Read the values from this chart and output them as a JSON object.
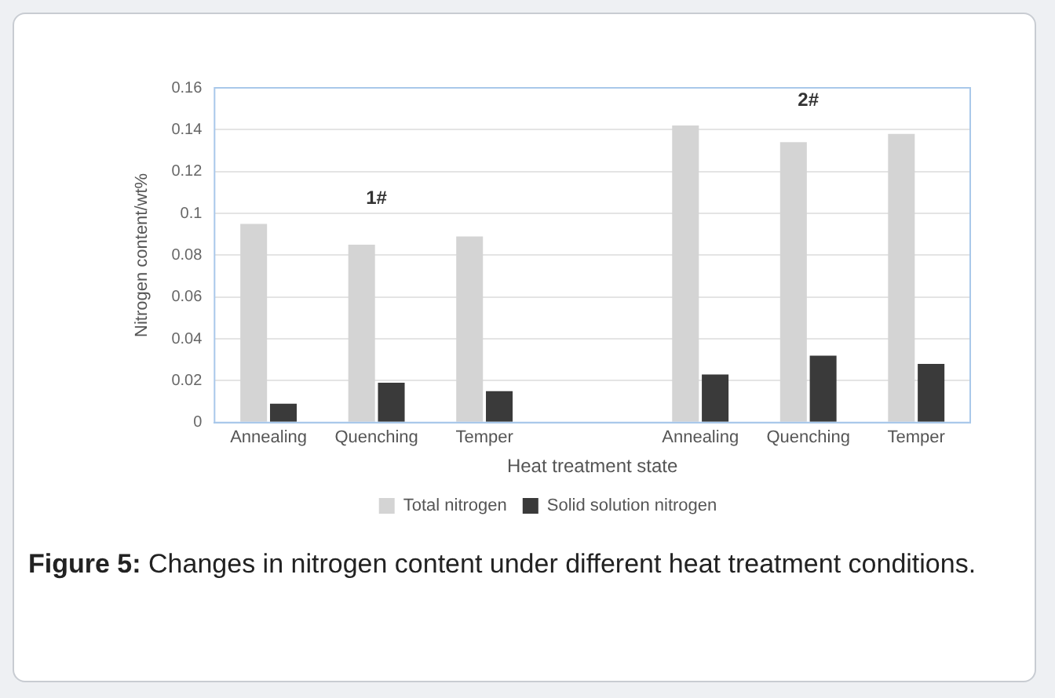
{
  "chart_data": {
    "type": "bar",
    "title": "Figure 5: Changes in nitrogen content under different heat treatment conditions.",
    "xlabel": "Heat treatment state",
    "ylabel": "Nitrogen content/wt%",
    "categories": [
      "Annealing",
      "Quenching",
      "Temper",
      null,
      "Annealing",
      "Quenching",
      "Temper"
    ],
    "series": [
      {
        "name": "Total nitrogen",
        "color": "#d4d4d4",
        "values": [
          0.095,
          0.085,
          0.089,
          null,
          0.142,
          0.134,
          0.138
        ]
      },
      {
        "name": "Solid solution nitrogen",
        "color": "#3a3a3a",
        "values": [
          0.009,
          0.019,
          0.015,
          null,
          0.023,
          0.032,
          0.028
        ]
      }
    ],
    "ylim": [
      0,
      0.16
    ],
    "yticks": [
      0,
      0.02,
      0.04,
      0.06,
      0.08,
      0.1,
      0.12,
      0.14,
      0.16
    ],
    "grid": "y",
    "legend": "bottom",
    "annotations": [
      "1#",
      "2#"
    ]
  }
}
